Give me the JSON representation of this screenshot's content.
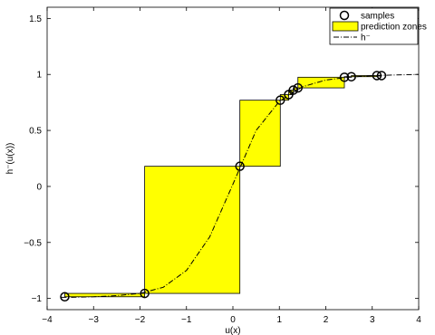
{
  "chart_data": {
    "type": "line",
    "xlabel": "u(x)",
    "ylabel": "h⁻(u(x))",
    "xlim": [
      -4,
      4
    ],
    "ylim": [
      -1.1,
      1.6
    ],
    "xticks": [
      -4,
      -3,
      -2,
      -1,
      0,
      1,
      2,
      3,
      4
    ],
    "xtick_labels": [
      "−4",
      "−3",
      "−2",
      "−1",
      "0",
      "1",
      "2",
      "3",
      "4"
    ],
    "yticks": [
      -1,
      -0.5,
      0,
      0.5,
      1,
      1.5
    ],
    "ytick_labels": [
      "−1",
      "−0.5",
      "0",
      "0.5",
      "1",
      "1.5"
    ],
    "grid": false,
    "legend_position": "top-right",
    "legend": [
      {
        "label": "samples",
        "marker": "circle"
      },
      {
        "label": "prediction zones",
        "marker": "yellow-box"
      },
      {
        "label": "h⁻",
        "marker": "dash-dot-line"
      }
    ],
    "colors": {
      "zone_fill": "#ffff00",
      "zone_edge": "#000000",
      "line": "#000000",
      "marker": "#000000"
    },
    "samples": {
      "x": [
        -3.62,
        -1.9,
        0.15,
        1.02,
        1.2,
        1.3,
        1.4,
        2.4,
        2.55,
        3.1,
        3.2
      ],
      "y": [
        -0.985,
        -0.955,
        0.18,
        0.77,
        0.82,
        0.86,
        0.88,
        0.975,
        0.98,
        0.99,
        0.99
      ]
    },
    "prediction_zones": [
      {
        "x0": -3.62,
        "x1": -1.9,
        "y0": -0.985,
        "y1": -0.955
      },
      {
        "x0": -1.9,
        "x1": 0.15,
        "y0": -0.955,
        "y1": 0.18
      },
      {
        "x0": 0.15,
        "x1": 1.02,
        "y0": 0.18,
        "y1": 0.77
      },
      {
        "x0": 1.02,
        "x1": 1.2,
        "y0": 0.77,
        "y1": 0.82
      },
      {
        "x0": 1.2,
        "x1": 1.3,
        "y0": 0.82,
        "y1": 0.86
      },
      {
        "x0": 1.3,
        "x1": 1.4,
        "y0": 0.86,
        "y1": 0.88
      },
      {
        "x0": 1.4,
        "x1": 2.4,
        "y0": 0.88,
        "y1": 0.975
      },
      {
        "x0": 2.4,
        "x1": 2.55,
        "y0": 0.975,
        "y1": 0.98
      },
      {
        "x0": 2.55,
        "x1": 3.1,
        "y0": 0.98,
        "y1": 0.99
      },
      {
        "x0": 3.1,
        "x1": 3.2,
        "y0": 0.99,
        "y1": 0.99
      }
    ],
    "curve": {
      "x": [
        -3.7,
        -3.5,
        -3.0,
        -2.5,
        -2.0,
        -1.5,
        -1.0,
        -0.5,
        0.0,
        0.5,
        1.0,
        1.5,
        2.0,
        2.5,
        3.0,
        3.5,
        4.0
      ],
      "y": [
        -0.99,
        -0.99,
        -0.985,
        -0.975,
        -0.955,
        -0.9,
        -0.75,
        -0.45,
        0.02,
        0.5,
        0.76,
        0.89,
        0.95,
        0.975,
        0.99,
        0.995,
        1.0
      ]
    }
  }
}
